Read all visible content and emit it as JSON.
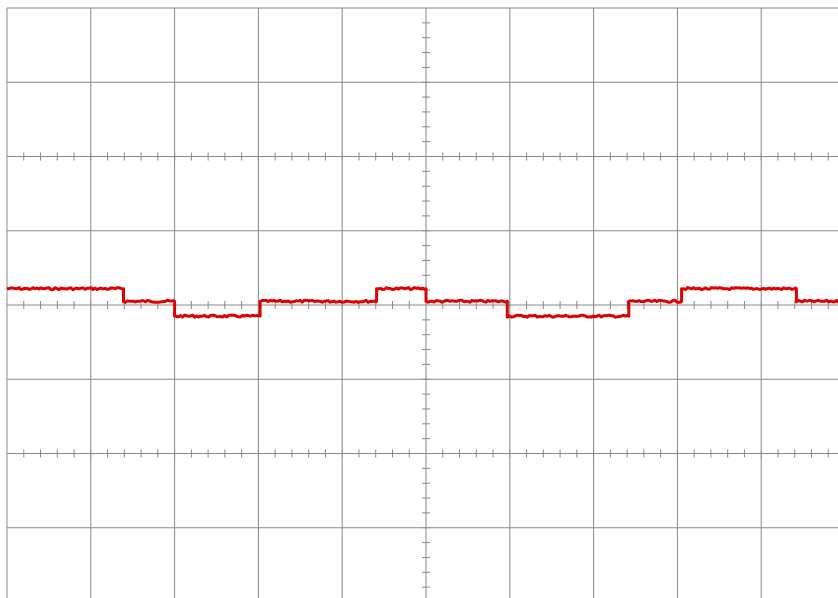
{
  "chart_data": {
    "type": "line",
    "title": "",
    "xlabel": "",
    "ylabel": "",
    "grid": true,
    "grid_color": "#888888",
    "trace_color": "#e00000",
    "x_divisions": 10,
    "y_divisions": 8,
    "minor_ticks_per_division": 5,
    "xlim": [
      -5,
      5
    ],
    "ylim": [
      -4,
      4
    ],
    "series": [
      {
        "x": [
          -5.0,
          -3.61,
          -3.61,
          -3.0,
          -3.0,
          -1.98,
          -1.98,
          -0.59,
          -0.59,
          0.0,
          0.0,
          0.97,
          0.97,
          2.42,
          2.42,
          3.05,
          3.05,
          4.42,
          4.42,
          5.0
        ],
        "values": [
          0.22,
          0.22,
          0.05,
          0.05,
          -0.15,
          -0.15,
          0.05,
          0.05,
          0.22,
          0.22,
          0.05,
          0.05,
          -0.15,
          -0.15,
          0.05,
          0.05,
          0.22,
          0.22,
          0.05,
          0.05
        ]
      }
    ]
  }
}
